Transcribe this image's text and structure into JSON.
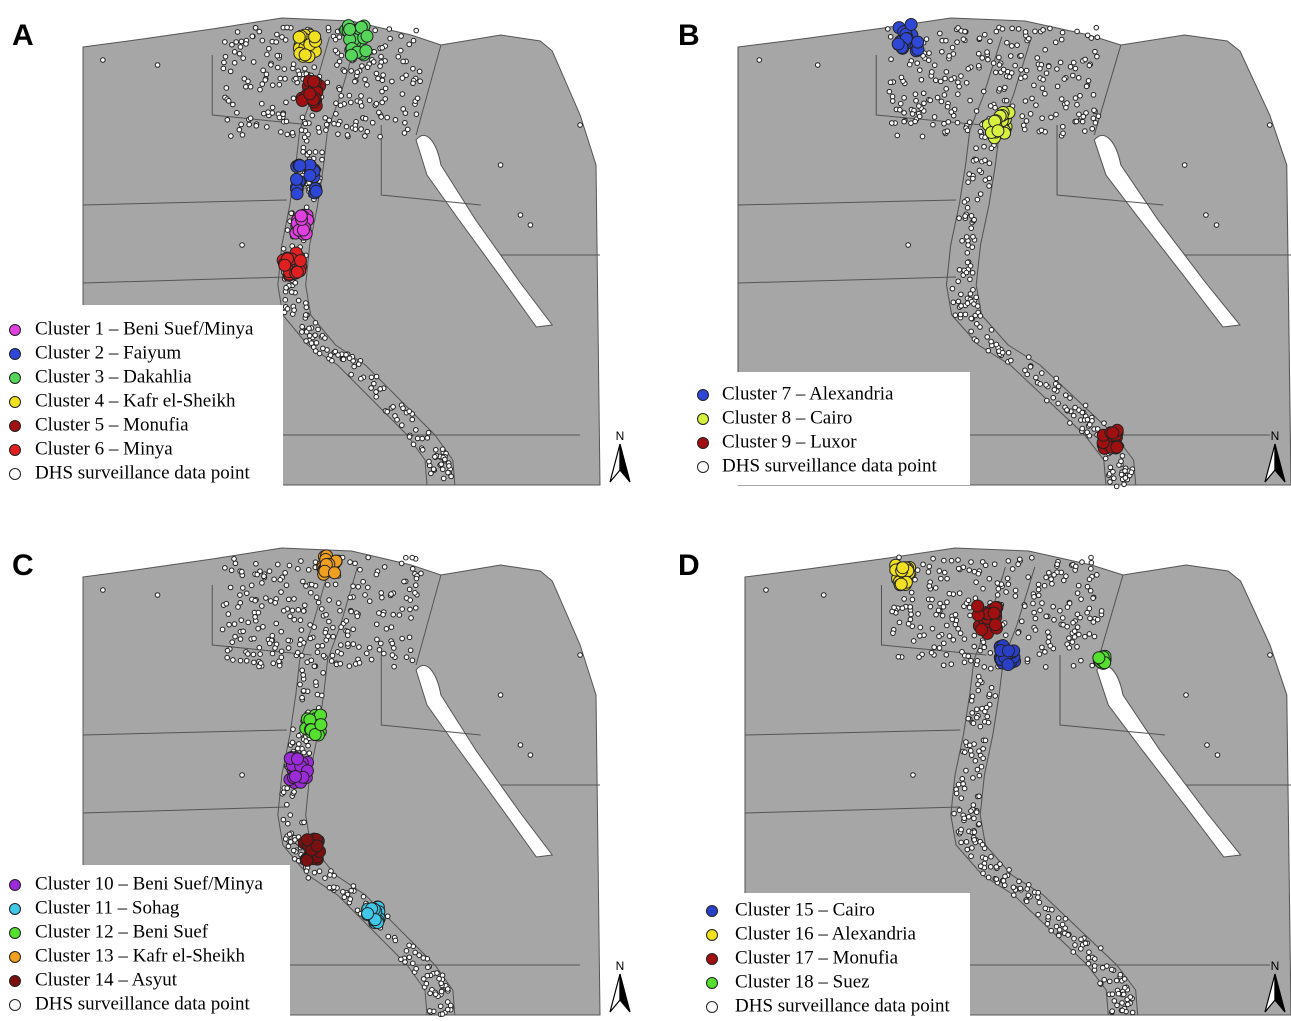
{
  "panels": [
    {
      "label": "A",
      "north": "N",
      "legend": [
        {
          "label": "Cluster 1 – Beni Suef/Minya",
          "color": "#e040e0"
        },
        {
          "label": "Cluster 2 – Faiyum",
          "color": "#2f47d6"
        },
        {
          "label": "Cluster 3 – Dakahlia",
          "color": "#55d65a"
        },
        {
          "label": "Cluster 4 – Kafr el-Sheikh",
          "color": "#f0e020"
        },
        {
          "label": "Cluster 5 – Monufia",
          "color": "#a01010"
        },
        {
          "label": "Cluster 6 – Minya",
          "color": "#e02020"
        },
        {
          "label": "DHS surveillance data point",
          "color": "#ffffff"
        }
      ]
    },
    {
      "label": "B",
      "north": "N",
      "legend": [
        {
          "label": "Cluster 7 – Alexandria",
          "color": "#2f47d6"
        },
        {
          "label": "Cluster 8 – Cairo",
          "color": "#d8f040"
        },
        {
          "label": "Cluster 9 –  Luxor",
          "color": "#a01010"
        },
        {
          "label": "DHS surveillance data point",
          "color": "#ffffff"
        }
      ]
    },
    {
      "label": "C",
      "north": "N",
      "legend": [
        {
          "label": "Cluster 10 – Beni Suef/Minya",
          "color": "#9a2bd6"
        },
        {
          "label": "Cluster 11 – Sohag",
          "color": "#40c8e8"
        },
        {
          "label": "Cluster 12 – Beni Suef",
          "color": "#55e030"
        },
        {
          "label": "Cluster 13 – Kafr el-Sheikh",
          "color": "#f0a020"
        },
        {
          "label": "Cluster 14 – Asyut",
          "color": "#7a1010"
        },
        {
          "label": "DHS surveillance data point",
          "color": "#ffffff"
        }
      ]
    },
    {
      "label": "D",
      "north": "N",
      "legend": [
        {
          "label": "Cluster 15 – Cairo",
          "color": "#2a3fc8"
        },
        {
          "label": "Cluster 16 – Alexandria",
          "color": "#f0e020"
        },
        {
          "label": "Cluster 17 – Monufia",
          "color": "#a01010"
        },
        {
          "label": "Cluster 18 – Suez",
          "color": "#55e030"
        },
        {
          "label": "DHS surveillance data point",
          "color": "#ffffff"
        }
      ]
    }
  ]
}
